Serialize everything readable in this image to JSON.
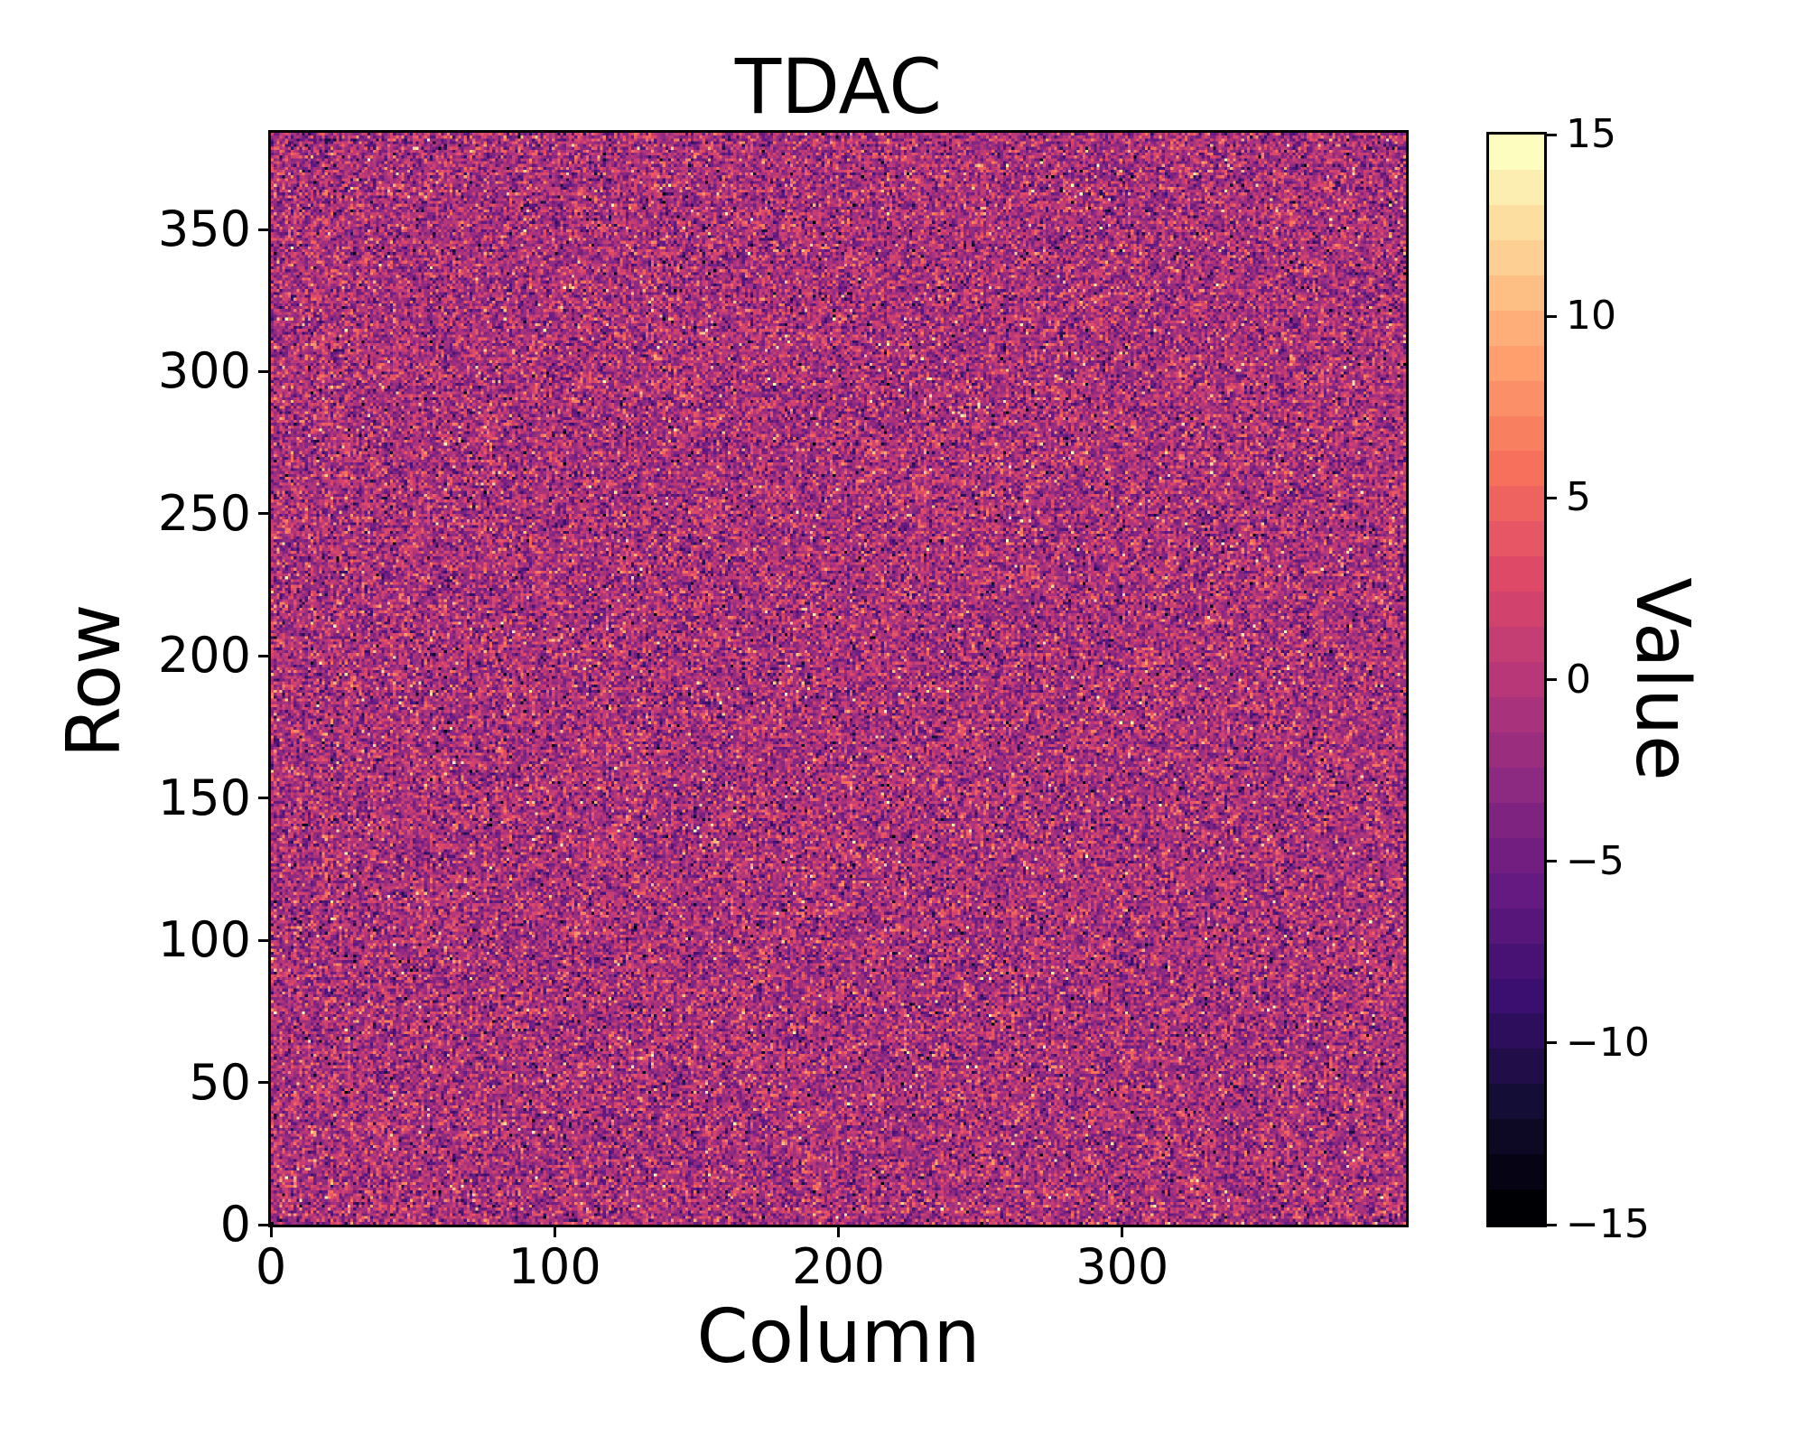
{
  "title": "TDAC",
  "xlabel": "Column",
  "ylabel": "Row",
  "colorbar": {
    "label": "Value",
    "tick_labels": [
      "15",
      "10",
      "5",
      "0",
      "−5",
      "−10",
      "−15"
    ],
    "tick_values": [
      15,
      10,
      5,
      0,
      -5,
      -10,
      -15
    ],
    "vmin": -15,
    "vmax": 15,
    "discrete_levels": 31
  },
  "axes": {
    "x_tick_labels": [
      "0",
      "100",
      "200",
      "300"
    ],
    "x_tick_values": [
      0,
      100,
      200,
      300
    ],
    "y_tick_labels": [
      "0",
      "50",
      "100",
      "150",
      "200",
      "250",
      "300",
      "350"
    ],
    "y_tick_values": [
      0,
      50,
      100,
      150,
      200,
      250,
      300,
      350
    ]
  },
  "colors": {
    "text": "#000000",
    "background": "#ffffff",
    "spine": "#000000"
  },
  "chart_data": {
    "type": "heatmap",
    "title": "TDAC",
    "xlabel": "Column",
    "ylabel": "Row",
    "colorbar_label": "Value",
    "cols": 400,
    "rows": 384,
    "xlim": [
      0,
      400
    ],
    "ylim": [
      0,
      384
    ],
    "x_tick_values": [
      0,
      100,
      200,
      300
    ],
    "y_tick_values": [
      0,
      50,
      100,
      150,
      200,
      250,
      300,
      350
    ],
    "value_range": [
      -15,
      15
    ],
    "colorbar_tick_values": [
      15,
      10,
      5,
      0,
      -5,
      -10,
      -15
    ],
    "colormap": "magma",
    "discrete_levels": 31,
    "grid": false,
    "legend": "none",
    "data_description": "400x384 per-pixel TDAC map of integer noise values clipped to [-15,15]; bulk of pixels between -4 and +3 (purple/magenta), scattered bright outliers up to +15 and dark outliers down to -15",
    "generation": {
      "kind": "gaussian-noise",
      "mean": -1,
      "std": 4,
      "outlier_fraction": 0.025,
      "round_to_integers": true,
      "seed": 1337
    },
    "colormap_anchors": [
      [
        0.0,
        "#000004"
      ],
      [
        0.1,
        "#140e36"
      ],
      [
        0.2,
        "#3b0f70"
      ],
      [
        0.3,
        "#641a80"
      ],
      [
        0.4,
        "#8c2981"
      ],
      [
        0.5,
        "#b73779"
      ],
      [
        0.6,
        "#de4968"
      ],
      [
        0.7,
        "#f7705c"
      ],
      [
        0.8,
        "#fe9f6d"
      ],
      [
        0.9,
        "#fecf92"
      ],
      [
        1.0,
        "#fcfdbf"
      ]
    ]
  }
}
